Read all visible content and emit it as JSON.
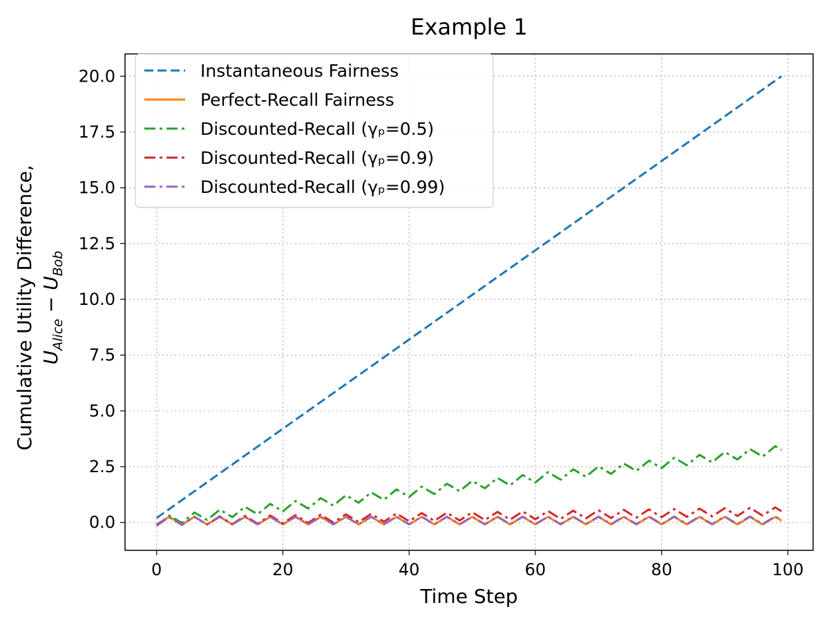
{
  "chart_data": {
    "type": "line",
    "title": "Example 1",
    "xlabel": "Time Step",
    "ylabel_line1": "Cumulative Utility Difference,",
    "ylabel_line2": "U_Alice − U_Bob",
    "ylabel_u": "U",
    "ylabel_sub_alice": "Alice",
    "ylabel_minus": " − ",
    "ylabel_sub_bob": "Bob",
    "xlim": [
      -5,
      104
    ],
    "ylim": [
      -1.25,
      21.0
    ],
    "xticks": [
      0,
      20,
      40,
      60,
      80,
      100
    ],
    "xtick_labels": [
      "0",
      "20",
      "40",
      "60",
      "80",
      "100"
    ],
    "yticks": [
      0,
      2.5,
      5,
      7.5,
      10,
      12.5,
      15,
      17.5,
      20
    ],
    "ytick_labels": [
      "0.0",
      "2.5",
      "5.0",
      "7.5",
      "10.0",
      "12.5",
      "15.0",
      "17.5",
      "20.0"
    ],
    "grid": true,
    "legend_position": "upper-left",
    "series": [
      {
        "name": "Instantaneous Fairness",
        "color": "#1f77b4",
        "style": "dashed",
        "x": [
          0,
          99
        ],
        "values": [
          0.2,
          20.0
        ]
      },
      {
        "name": "Perfect-Recall Fairness",
        "color": "#ff7f0e",
        "style": "solid",
        "pattern": "zigzag",
        "x_start": 0,
        "x_end": 99,
        "base_start": 0.08,
        "base_end": 0.08,
        "amplitude": 0.17,
        "period": 4
      },
      {
        "name": "Discounted-Recall (γₚ=0.5)",
        "color": "#2ca02c",
        "style": "dashdot",
        "pattern": "zigzag",
        "x_start": 0,
        "x_end": 99,
        "base_start": 0.05,
        "base_end": 3.25,
        "amplitude": 0.2,
        "period": 4
      },
      {
        "name": "Discounted-Recall (γₚ=0.9)",
        "color": "#d62728",
        "style": "dashdot",
        "pattern": "zigzag",
        "x_start": 0,
        "x_end": 99,
        "base_start": 0.05,
        "base_end": 0.5,
        "amplitude": 0.18,
        "period": 4
      },
      {
        "name": "Discounted-Recall (γₚ=0.99)",
        "color": "#9467bd",
        "style": "dashdot",
        "pattern": "zigzag",
        "x_start": 0,
        "x_end": 99,
        "base_start": 0.08,
        "base_end": 0.1,
        "amplitude": 0.17,
        "period": 4
      }
    ]
  }
}
